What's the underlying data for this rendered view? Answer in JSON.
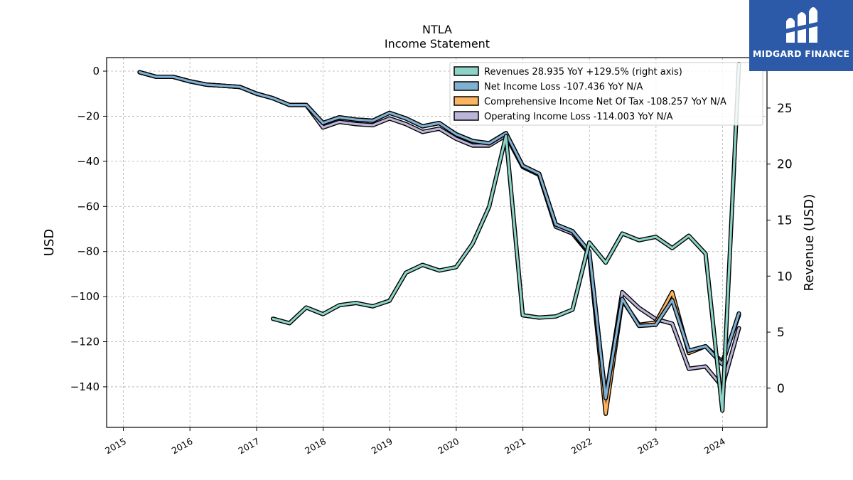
{
  "chart_data": {
    "type": "line",
    "title": "NTLA",
    "subtitle": "Income Statement",
    "ylabel": "USD",
    "ylabel_right": "Revenue (USD)",
    "ylim": [
      -158,
      6
    ],
    "ylim_right": [
      -3.5,
      29.5
    ],
    "y_ticks": [
      0,
      -20,
      -40,
      -60,
      -80,
      -100,
      -120,
      -140
    ],
    "y_ticks_right": [
      0,
      5,
      10,
      15,
      20,
      25
    ],
    "x_range": [
      "2014-10-01",
      "2024-09-01"
    ],
    "x_ticks": [
      "2015",
      "2016",
      "2017",
      "2018",
      "2019",
      "2020",
      "2021",
      "2022",
      "2023",
      "2024"
    ],
    "grid": true,
    "legend_position": "top-right",
    "series": [
      {
        "name": "Revenues  28.935 YoY +129.5% (right axis)",
        "axis": "right",
        "color": "#8dd3c7",
        "x": [
          "2017-03-31",
          "2017-06-30",
          "2017-09-30",
          "2017-12-31",
          "2018-03-31",
          "2018-06-30",
          "2018-09-30",
          "2018-12-31",
          "2019-03-31",
          "2019-06-30",
          "2019-09-30",
          "2019-12-31",
          "2020-03-31",
          "2020-06-30",
          "2020-09-30",
          "2020-12-31",
          "2021-03-31",
          "2021-06-30",
          "2021-09-30",
          "2021-12-31",
          "2022-03-31",
          "2022-06-30",
          "2022-09-30",
          "2022-12-31",
          "2023-03-31",
          "2023-06-30",
          "2023-09-30",
          "2023-12-31",
          "2024-03-31"
        ],
        "values": [
          6.2,
          5.8,
          7.2,
          6.6,
          7.4,
          7.6,
          7.3,
          7.8,
          10.3,
          11.0,
          10.5,
          10.8,
          12.9,
          16.2,
          22.5,
          6.5,
          6.3,
          6.4,
          7.0,
          13.0,
          11.2,
          13.8,
          13.2,
          13.5,
          12.5,
          13.6,
          12.0,
          -2.0,
          28.935
        ]
      },
      {
        "name": "Net Income Loss  -107.436 YoY N/A",
        "axis": "left",
        "color": "#80b1d3",
        "x": [
          "2015-03-31",
          "2015-06-30",
          "2015-09-30",
          "2015-12-31",
          "2016-03-31",
          "2016-06-30",
          "2016-09-30",
          "2016-12-31",
          "2017-03-31",
          "2017-06-30",
          "2017-09-30",
          "2017-12-31",
          "2018-03-31",
          "2018-06-30",
          "2018-09-30",
          "2018-12-31",
          "2019-03-31",
          "2019-06-30",
          "2019-09-30",
          "2019-12-31",
          "2020-03-31",
          "2020-06-30",
          "2020-09-30",
          "2020-12-31",
          "2021-03-31",
          "2021-06-30",
          "2021-09-30",
          "2021-12-31",
          "2022-03-31",
          "2022-06-30",
          "2022-09-30",
          "2022-12-31",
          "2023-03-31",
          "2023-06-30",
          "2023-09-30",
          "2023-12-31",
          "2024-03-31"
        ],
        "values": [
          -0.5,
          -2.5,
          -2.5,
          -4.5,
          -6.0,
          -6.5,
          -7.0,
          -10.0,
          -12.0,
          -15.0,
          -15.0,
          -23.0,
          -20.5,
          -21.5,
          -22.0,
          -18.5,
          -21.0,
          -24.5,
          -23.0,
          -28.0,
          -31.0,
          -32.0,
          -27.5,
          -42.0,
          -45.5,
          -68.0,
          -71.0,
          -80.0,
          -145.0,
          -101.0,
          -113.0,
          -112.5,
          -101.5,
          -124.0,
          -122.0,
          -130.0,
          -107.436
        ]
      },
      {
        "name": "Comprehensive Income Net Of Tax  -108.257 YoY N/A",
        "axis": "left",
        "color": "#fdb462",
        "x": [
          "2015-03-31",
          "2015-06-30",
          "2015-09-30",
          "2015-12-31",
          "2016-03-31",
          "2016-06-30",
          "2016-09-30",
          "2016-12-31",
          "2017-03-31",
          "2017-06-30",
          "2017-09-30",
          "2017-12-31",
          "2018-03-31",
          "2018-06-30",
          "2018-09-30",
          "2018-12-31",
          "2019-03-31",
          "2019-06-30",
          "2019-09-30",
          "2019-12-31",
          "2020-03-31",
          "2020-06-30",
          "2020-09-30",
          "2020-12-31",
          "2021-03-31",
          "2021-06-30",
          "2021-09-30",
          "2021-12-31",
          "2022-03-31",
          "2022-06-30",
          "2022-09-30",
          "2022-12-31",
          "2023-03-31",
          "2023-06-30",
          "2023-09-30",
          "2023-12-31",
          "2024-03-31"
        ],
        "values": [
          -0.5,
          -2.5,
          -2.5,
          -4.5,
          -6.0,
          -6.5,
          -7.0,
          -10.0,
          -12.0,
          -15.0,
          -15.0,
          -23.0,
          -20.5,
          -21.5,
          -22.0,
          -18.5,
          -21.0,
          -24.5,
          -23.0,
          -28.0,
          -31.0,
          -32.0,
          -27.5,
          -42.0,
          -45.5,
          -68.0,
          -71.0,
          -81.0,
          -152.0,
          -101.5,
          -112.5,
          -111.5,
          -98.0,
          -125.0,
          -122.0,
          -129.0,
          -108.257
        ]
      },
      {
        "name": "Operating Income Loss  -114.003 YoY N/A",
        "axis": "left",
        "color": "#bcb5d9",
        "x": [
          "2015-03-31",
          "2015-06-30",
          "2015-09-30",
          "2015-12-31",
          "2016-03-31",
          "2016-06-30",
          "2016-09-30",
          "2016-12-31",
          "2017-03-31",
          "2017-06-30",
          "2017-09-30",
          "2017-12-31",
          "2018-03-31",
          "2018-06-30",
          "2018-09-30",
          "2018-12-31",
          "2019-03-31",
          "2019-06-30",
          "2019-09-30",
          "2019-12-31",
          "2020-03-31",
          "2020-06-30",
          "2020-09-30",
          "2020-12-31",
          "2021-03-31",
          "2021-06-30",
          "2021-09-30",
          "2021-12-31",
          "2022-03-31",
          "2022-06-30",
          "2022-09-30",
          "2022-12-31",
          "2023-03-31",
          "2023-06-30",
          "2023-09-30",
          "2023-12-31",
          "2024-03-31"
        ],
        "values": [
          -0.5,
          -2.5,
          -2.5,
          -4.5,
          -6.0,
          -6.5,
          -7.0,
          -10.0,
          -12.0,
          -15.0,
          -15.0,
          -25.0,
          -22.5,
          -23.5,
          -24.0,
          -21.0,
          -23.5,
          -27.0,
          -25.5,
          -30.0,
          -33.0,
          -33.0,
          -28.5,
          -42.5,
          -46.0,
          -69.0,
          -72.0,
          -81.0,
          -145.0,
          -98.0,
          -105.0,
          -110.0,
          -112.0,
          -132.0,
          -131.0,
          -140.0,
          -114.003
        ]
      }
    ]
  },
  "logo": {
    "text": "MIDGARD FINANCE"
  }
}
